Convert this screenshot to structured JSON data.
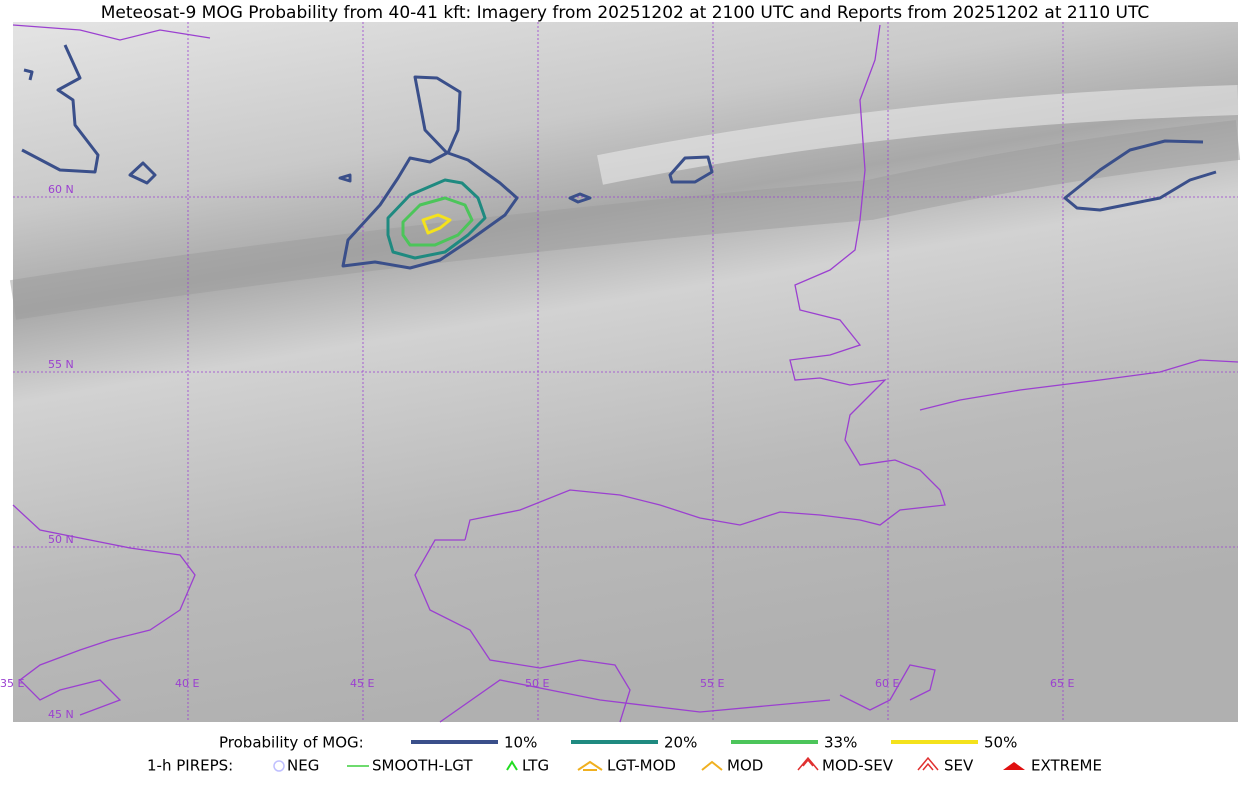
{
  "title": "Meteosat-9 MOG Probability from 40-41 kft: Imagery from 20251202 at 2100 UTC and Reports from 20251202 at 2110 UTC",
  "map": {
    "lat_labels": [
      "60 N",
      "55 N",
      "50 N",
      "45 N"
    ],
    "lon_labels": [
      "35 E",
      "40 E",
      "45 E",
      "50 E",
      "55 E",
      "60 E",
      "65 E"
    ]
  },
  "legend": {
    "mog_title": "Probability of MOG:",
    "mog_levels": [
      {
        "label": "10%",
        "color": "#3a4f8a"
      },
      {
        "label": "20%",
        "color": "#1f8a80"
      },
      {
        "label": "33%",
        "color": "#4cc55a"
      },
      {
        "label": "50%",
        "color": "#f4e21c"
      }
    ],
    "pireps_title": "1-h PIREPS:",
    "pireps": [
      "NEG",
      "SMOOTH-LGT",
      "LTG",
      "LGT-MOD",
      "MOD",
      "MOD-SEV",
      "SEV",
      "EXTREME"
    ]
  }
}
